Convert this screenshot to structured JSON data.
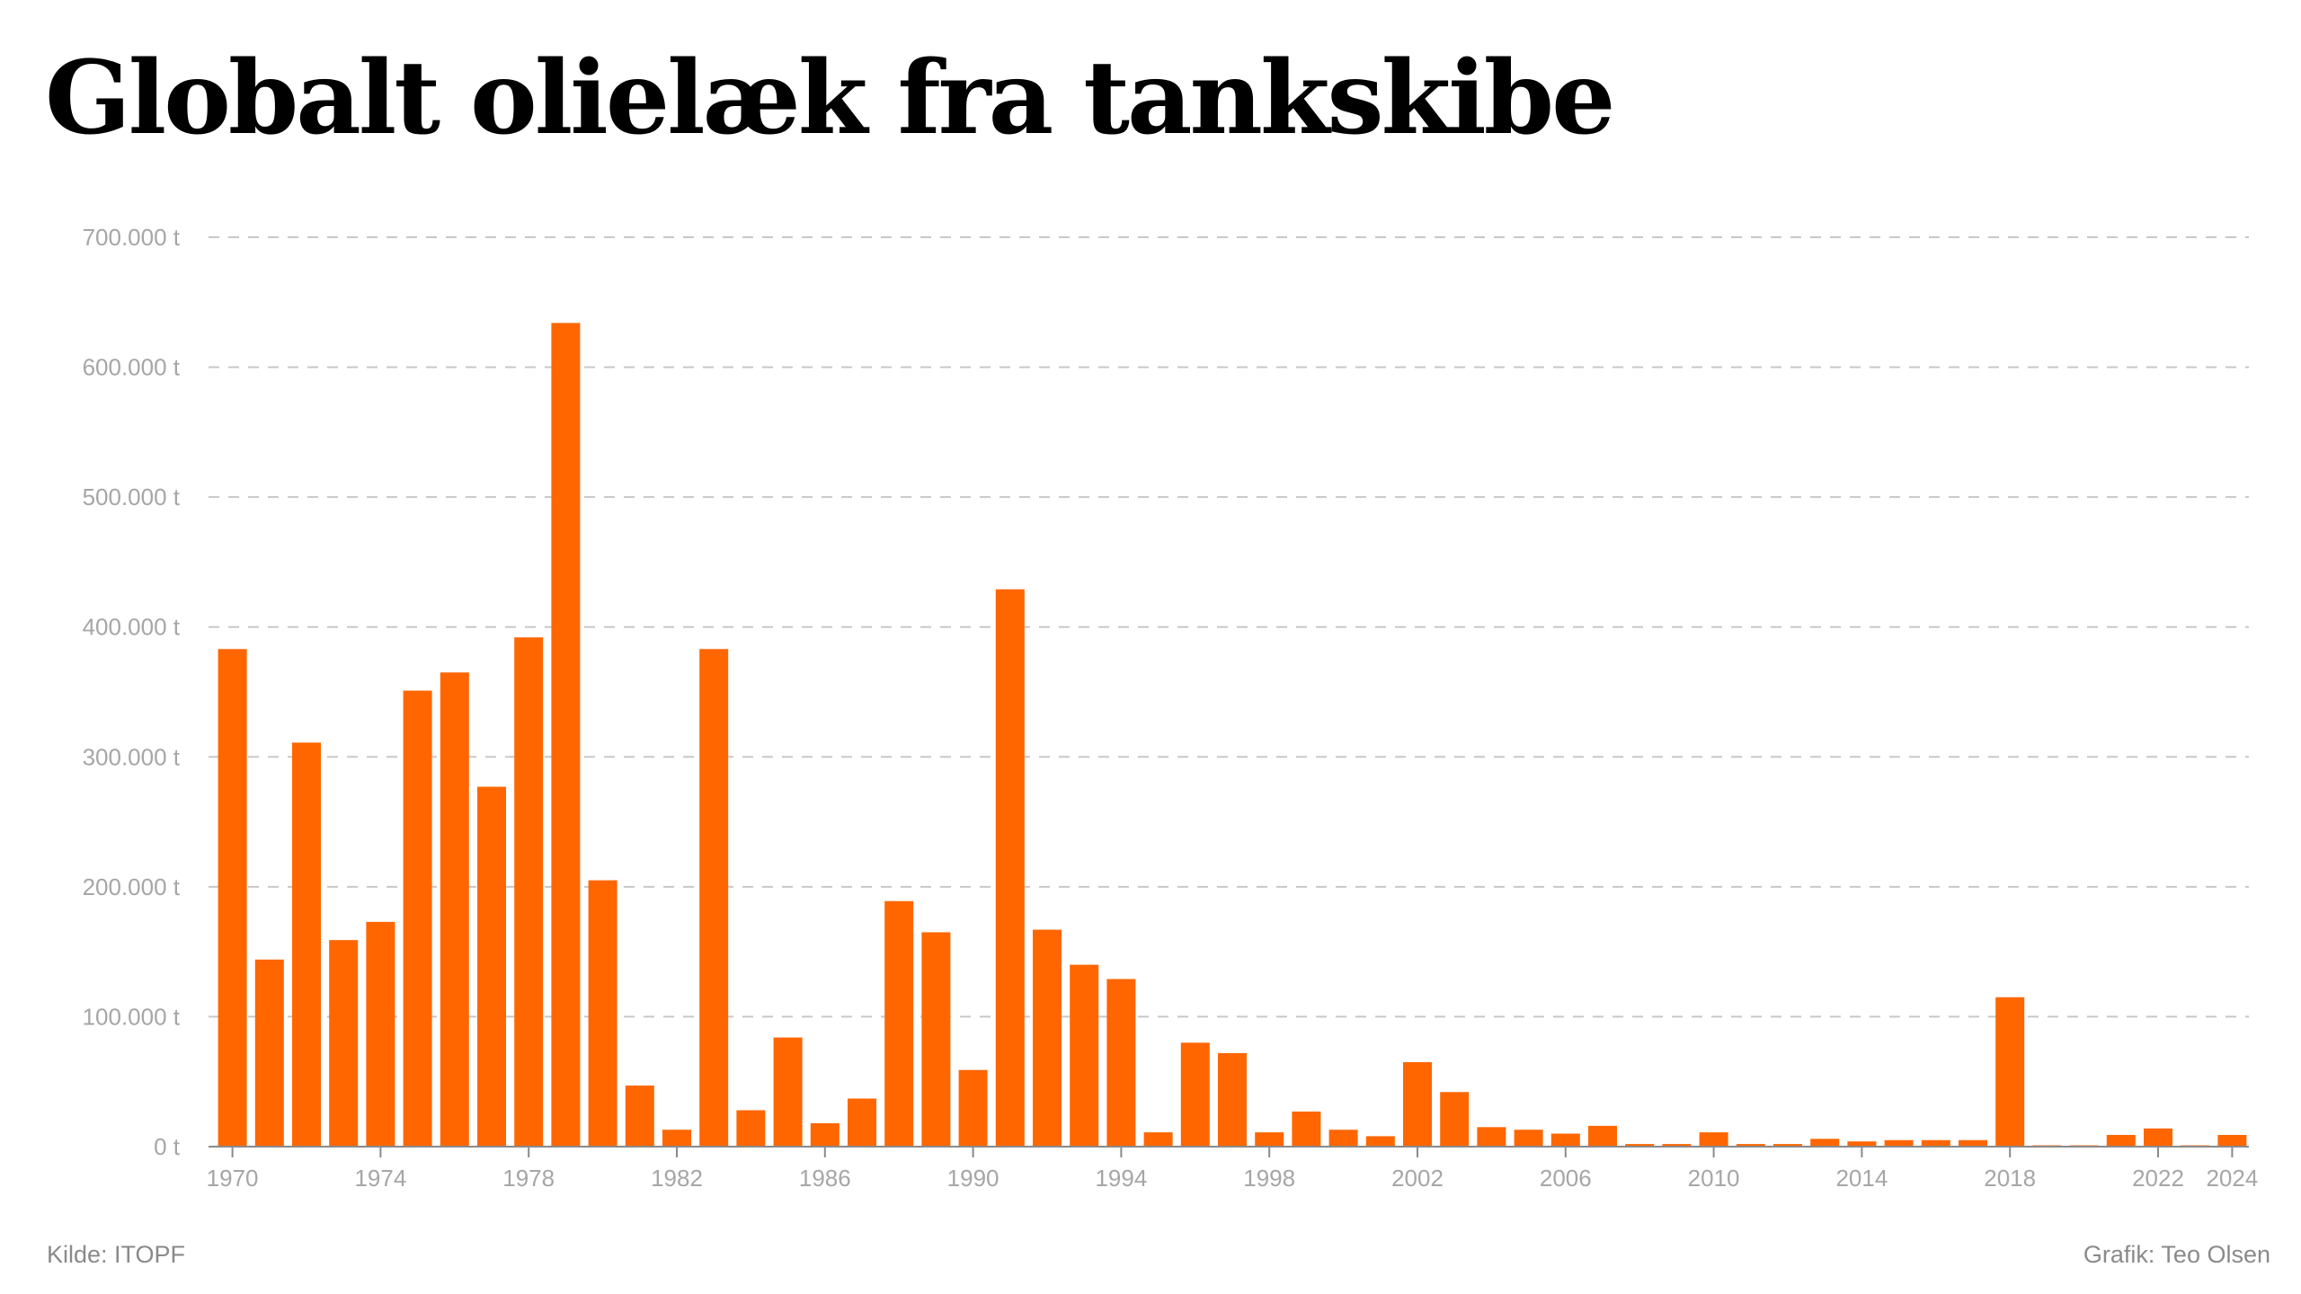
{
  "header": {
    "title": "Globalt olielæk fra tankskibe"
  },
  "footer": {
    "source": "Kilde: ITOPF",
    "credit": "Grafik: Teo Olsen"
  },
  "colors": {
    "bar": "#ff6600",
    "grid": "#c8c8c8",
    "axis": "#8a8a8a",
    "tick_text": "#a6a6a6",
    "title": "#000000"
  },
  "chart_data": {
    "type": "bar",
    "title": "Globalt olielæk fra tankskibe",
    "xlabel": "",
    "ylabel": "",
    "ylim": [
      0,
      700000
    ],
    "grid": true,
    "y_ticks": [
      0,
      100000,
      200000,
      300000,
      400000,
      500000,
      600000,
      700000
    ],
    "y_tick_labels": [
      "0 t",
      "100.000 t",
      "200.000 t",
      "300.000 t",
      "400.000 t",
      "500.000 t",
      "600.000 t",
      "700.000 t"
    ],
    "x_tick_labels": [
      "1970",
      "1974",
      "1978",
      "1982",
      "1986",
      "1990",
      "1994",
      "1998",
      "2002",
      "2006",
      "2010",
      "2014",
      "2018",
      "2022",
      "2024"
    ],
    "categories": [
      1970,
      1971,
      1972,
      1973,
      1974,
      1975,
      1976,
      1977,
      1978,
      1979,
      1980,
      1981,
      1982,
      1983,
      1984,
      1985,
      1986,
      1987,
      1988,
      1989,
      1990,
      1991,
      1992,
      1993,
      1994,
      1995,
      1996,
      1997,
      1998,
      1999,
      2000,
      2001,
      2002,
      2003,
      2004,
      2005,
      2006,
      2007,
      2008,
      2009,
      2010,
      2011,
      2012,
      2013,
      2014,
      2015,
      2016,
      2017,
      2018,
      2019,
      2020,
      2021,
      2022,
      2023,
      2024
    ],
    "values": [
      383000,
      144000,
      311000,
      159000,
      173000,
      351000,
      365000,
      277000,
      392000,
      634000,
      205000,
      47000,
      13000,
      383000,
      28000,
      84000,
      18000,
      37000,
      189000,
      165000,
      59000,
      429000,
      167000,
      140000,
      129000,
      11000,
      80000,
      72000,
      11000,
      27000,
      13000,
      8000,
      65000,
      42000,
      15000,
      13000,
      10000,
      16000,
      2000,
      2000,
      11000,
      2000,
      2000,
      6000,
      4000,
      5000,
      5000,
      5000,
      115000,
      1000,
      1000,
      9000,
      14000,
      1000,
      9000
    ]
  }
}
